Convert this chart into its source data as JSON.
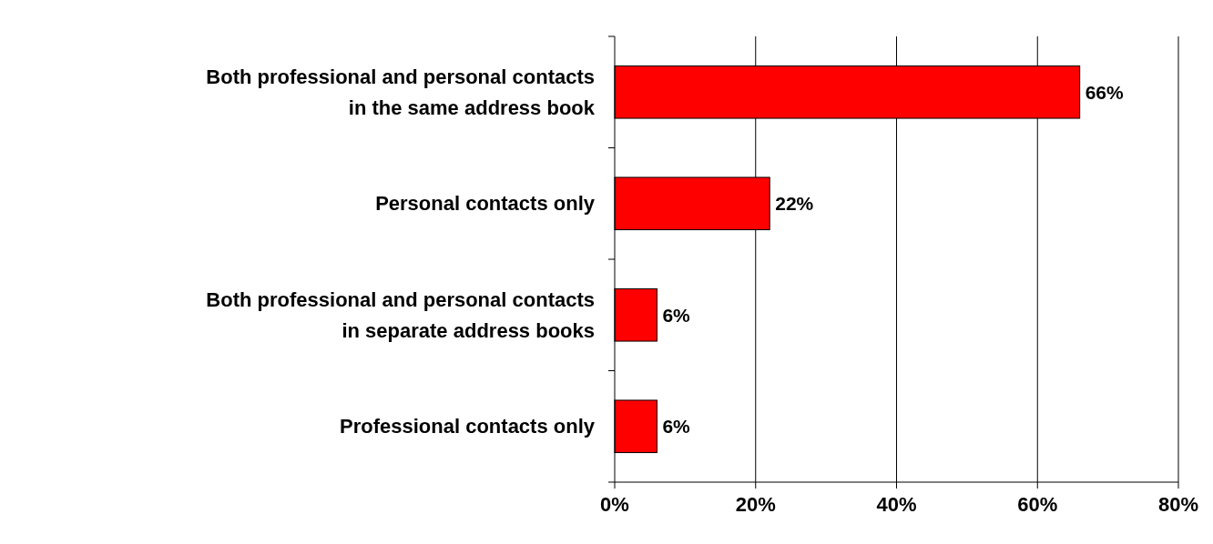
{
  "chart_data": {
    "type": "bar",
    "orientation": "horizontal",
    "categories": [
      "Both professional and personal contacts\nin the same address book",
      "Personal contacts only",
      "Both professional and personal contacts\nin separate address books",
      "Professional contacts only"
    ],
    "values": [
      66,
      22,
      6,
      6
    ],
    "value_labels": [
      "66%",
      "22%",
      "6%",
      "6%"
    ],
    "color": "#ff0000",
    "xlim": [
      0,
      80
    ],
    "xticks": [
      {
        "value": 0,
        "label": "0%"
      },
      {
        "value": 20,
        "label": "20%"
      },
      {
        "value": 40,
        "label": "40%"
      },
      {
        "value": 60,
        "label": "60%"
      },
      {
        "value": 80,
        "label": "80%"
      }
    ],
    "grid": "x"
  }
}
